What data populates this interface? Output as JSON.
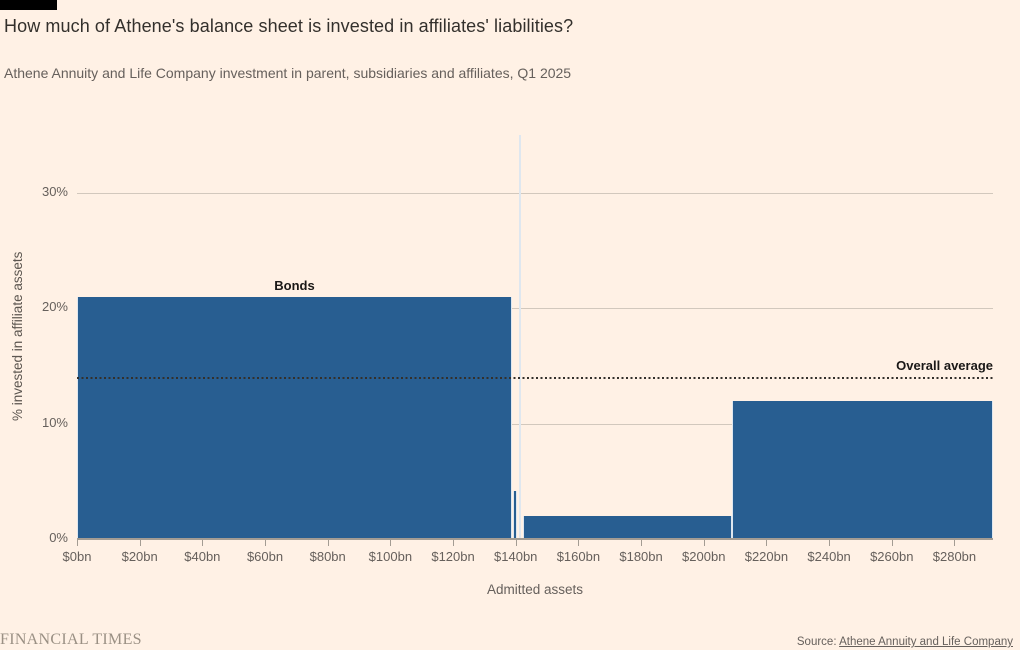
{
  "header": {
    "title": "How much of Athene's balance sheet is invested in affiliates' liabilities?",
    "subtitle": "Athene Annuity and Life Company investment in parent, subsidiaries and affiliates, Q1 2025"
  },
  "footer": {
    "brand": "FINANCIAL TIMES",
    "source_prefix": "Source: ",
    "source_link": "Athene Annuity and Life Company"
  },
  "chart_data": {
    "type": "bar",
    "subtype": "variable-width-marimekko",
    "title": "How much of Athene's balance sheet is invested in affiliates' liabilities?",
    "subtitle": "Athene Annuity and Life Company investment in parent, subsidiaries and affiliates, Q1 2025",
    "xlabel": "Admitted assets",
    "ylabel": "% invested in affiliate assets",
    "xlim": [
      0,
      292.3
    ],
    "ylim": [
      0,
      35.2
    ],
    "grid": "horizontal",
    "legend": "none",
    "x_ticks": [
      {
        "v": 0,
        "label": "$0bn"
      },
      {
        "v": 20,
        "label": "$20bn"
      },
      {
        "v": 40,
        "label": "$40bn"
      },
      {
        "v": 60,
        "label": "$60bn"
      },
      {
        "v": 80,
        "label": "$80bn"
      },
      {
        "v": 100,
        "label": "$100bn"
      },
      {
        "v": 120,
        "label": "$120bn"
      },
      {
        "v": 140,
        "label": "$140bn"
      },
      {
        "v": 160,
        "label": "$160bn"
      },
      {
        "v": 180,
        "label": "$180bn"
      },
      {
        "v": 200,
        "label": "$200bn"
      },
      {
        "v": 220,
        "label": "$220bn"
      },
      {
        "v": 240,
        "label": "$240bn"
      },
      {
        "v": 260,
        "label": "$260bn"
      },
      {
        "v": 280,
        "label": "$280bn"
      }
    ],
    "y_ticks": [
      {
        "v": 0,
        "label": "0%"
      },
      {
        "v": 10,
        "label": "10%"
      },
      {
        "v": 20,
        "label": "20%"
      },
      {
        "v": 30,
        "label": "30%"
      }
    ],
    "segments": [
      {
        "label": "Bonds",
        "x0": 0,
        "x1": 138.8,
        "value": 21
      },
      {
        "label": "",
        "x0": 139.2,
        "x1": 140.4,
        "value": 4.2
      },
      {
        "label": "",
        "x0": 140.9,
        "x1": 141.7,
        "value": 35
      },
      {
        "label": "",
        "x0": 142.2,
        "x1": 208.9,
        "value": 2
      },
      {
        "label": "",
        "x0": 208.9,
        "x1": 292.3,
        "value": 12
      }
    ],
    "average_line": {
      "label": "Overall average",
      "value": 14,
      "style": "dotted"
    },
    "colors": {
      "background": "#FFF1E5",
      "bar": "#285E91",
      "grid": "#D2C8BD",
      "axis": "#A39C93",
      "tick_text": "#66605C",
      "title_text": "#33302C",
      "annotation_text": "#1A1817",
      "average_line": "#33302C"
    }
  }
}
